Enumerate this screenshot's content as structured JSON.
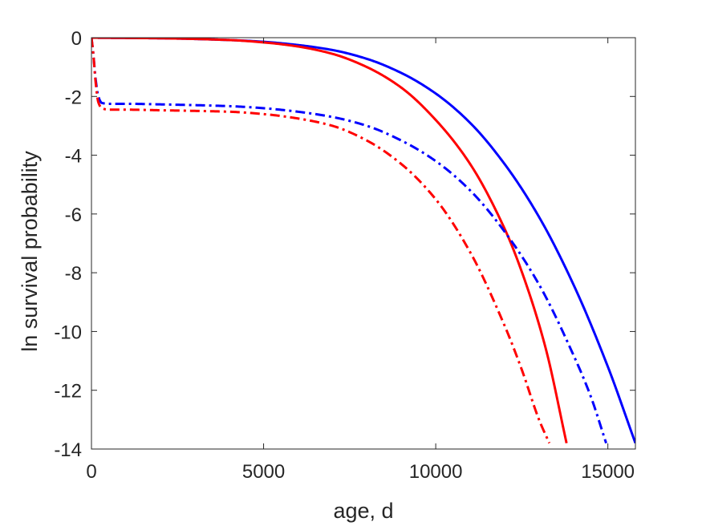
{
  "chart_data": {
    "type": "line",
    "xlabel": "age, d",
    "ylabel": "ln survival probability",
    "xlim": [
      0,
      15800
    ],
    "ylim": [
      -14,
      0
    ],
    "xticks": [
      0,
      5000,
      10000,
      15000
    ],
    "xtick_labels": [
      "0",
      "5000",
      "10000",
      "15000"
    ],
    "yticks": [
      0,
      -2,
      -4,
      -6,
      -8,
      -10,
      -12,
      -14
    ],
    "ytick_labels": [
      "0",
      "-2",
      "-4",
      "-6",
      "-8",
      "-10",
      "-12",
      "-14"
    ],
    "grid": false,
    "legend": "none",
    "series": [
      {
        "color": "#0000ff",
        "style": "solid",
        "x": [
          0,
          2000,
          4000,
          5000,
          6000,
          7000,
          8000,
          9000,
          10000,
          11000,
          12000,
          13000,
          14000,
          15000,
          15800
        ],
        "y": [
          0,
          -0.02,
          -0.08,
          -0.14,
          -0.25,
          -0.42,
          -0.72,
          -1.2,
          -1.9,
          -2.9,
          -4.3,
          -6.1,
          -8.4,
          -11.2,
          -13.8
        ]
      },
      {
        "color": "#ff0000",
        "style": "solid",
        "x": [
          0,
          2000,
          4000,
          5000,
          6000,
          7000,
          8000,
          9000,
          10000,
          11000,
          12000,
          12600,
          13200,
          13800
        ],
        "y": [
          0,
          -0.02,
          -0.08,
          -0.16,
          -0.3,
          -0.55,
          -1.0,
          -1.7,
          -2.8,
          -4.3,
          -6.5,
          -8.3,
          -10.6,
          -13.8
        ]
      },
      {
        "color": "#0000ff",
        "style": "dashdot",
        "x": [
          0,
          50,
          120,
          200,
          300,
          500,
          1000,
          2000,
          4000,
          5000,
          6000,
          7000,
          8000,
          9000,
          10000,
          11000,
          12000,
          13000,
          14000,
          14500,
          14950
        ],
        "y": [
          0,
          -0.5,
          -1.4,
          -2.0,
          -2.22,
          -2.25,
          -2.25,
          -2.27,
          -2.33,
          -2.4,
          -2.52,
          -2.7,
          -3.0,
          -3.5,
          -4.2,
          -5.2,
          -6.6,
          -8.4,
          -10.8,
          -12.2,
          -13.8
        ]
      },
      {
        "color": "#ff0000",
        "style": "dashdot",
        "x": [
          0,
          50,
          120,
          200,
          300,
          500,
          1000,
          2000,
          4000,
          5000,
          6000,
          7000,
          8000,
          9000,
          10000,
          11000,
          12000,
          12500,
          13000,
          13300
        ],
        "y": [
          0,
          -0.5,
          -1.5,
          -2.2,
          -2.4,
          -2.45,
          -2.45,
          -2.47,
          -2.52,
          -2.6,
          -2.75,
          -3.0,
          -3.5,
          -4.3,
          -5.5,
          -7.3,
          -9.8,
          -11.3,
          -13.0,
          -13.8
        ]
      }
    ]
  }
}
